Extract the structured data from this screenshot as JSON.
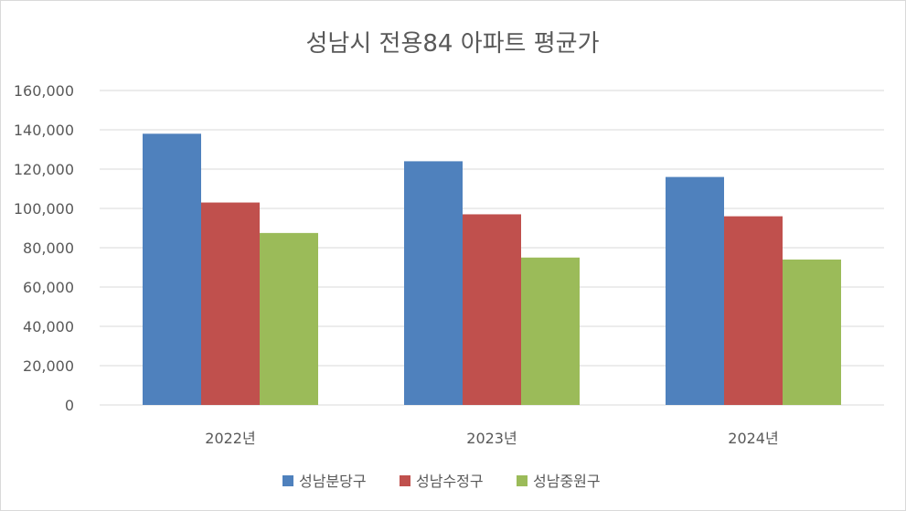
{
  "chart_data": {
    "type": "bar",
    "title": "성남시 전용84 아파트 평균가",
    "categories": [
      "2022년",
      "2023년",
      "2024년"
    ],
    "series": [
      {
        "name": "성남분당구",
        "color": "#4f81bd",
        "values": [
          138000,
          124000,
          116000
        ]
      },
      {
        "name": "성남수정구",
        "color": "#c0504d",
        "values": [
          103000,
          97000,
          96000
        ]
      },
      {
        "name": "성남중원구",
        "color": "#9bbb59",
        "values": [
          87500,
          75000,
          74000
        ]
      }
    ],
    "ylim": [
      0,
      160000
    ],
    "yticks": [
      "0",
      "20,000",
      "40,000",
      "60,000",
      "80,000",
      "100,000",
      "120,000",
      "140,000",
      "160,000"
    ],
    "ytick_step": 20000,
    "grid": true,
    "legend": "bottom",
    "grid_color": "#d9d9d9"
  }
}
